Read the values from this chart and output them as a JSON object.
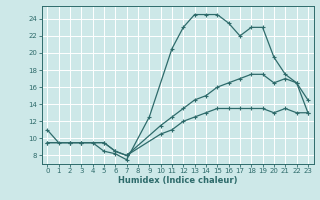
{
  "xlabel": "Humidex (Indice chaleur)",
  "background_color": "#cde8e8",
  "grid_color": "#ffffff",
  "line_color": "#2e6b6b",
  "xlim": [
    -0.5,
    23.5
  ],
  "ylim": [
    7.0,
    25.5
  ],
  "xticks": [
    0,
    1,
    2,
    3,
    4,
    5,
    6,
    7,
    8,
    9,
    10,
    11,
    12,
    13,
    14,
    15,
    16,
    17,
    18,
    19,
    20,
    21,
    22,
    23
  ],
  "yticks": [
    8,
    10,
    12,
    14,
    16,
    18,
    20,
    22,
    24
  ],
  "curve1_x": [
    0,
    1,
    2,
    3,
    4,
    5,
    6,
    7,
    9,
    11,
    12,
    13,
    14,
    15,
    16,
    17,
    18,
    19,
    20,
    21,
    22,
    23
  ],
  "curve1_y": [
    11,
    9.5,
    9.5,
    9.5,
    9.5,
    8.5,
    8.2,
    7.5,
    12.5,
    20.5,
    23.0,
    24.5,
    24.5,
    24.5,
    23.5,
    22.0,
    23.0,
    23.0,
    19.5,
    17.5,
    16.5,
    13.0
  ],
  "curve2_x": [
    0,
    2,
    3,
    5,
    6,
    7,
    10,
    11,
    12,
    13,
    14,
    15,
    16,
    17,
    18,
    19,
    20,
    21,
    22,
    23
  ],
  "curve2_y": [
    9.5,
    9.5,
    9.5,
    9.5,
    8.5,
    8.0,
    11.5,
    12.5,
    13.5,
    14.5,
    15.0,
    16.0,
    16.5,
    17.0,
    17.5,
    17.5,
    16.5,
    17.0,
    16.5,
    14.5
  ],
  "curve3_x": [
    0,
    2,
    3,
    5,
    6,
    7,
    10,
    11,
    12,
    13,
    14,
    15,
    16,
    17,
    18,
    19,
    20,
    21,
    22,
    23
  ],
  "curve3_y": [
    9.5,
    9.5,
    9.5,
    9.5,
    8.5,
    8.0,
    10.5,
    11.0,
    12.0,
    12.5,
    13.0,
    13.5,
    13.5,
    13.5,
    13.5,
    13.5,
    13.0,
    13.5,
    13.0,
    13.0
  ]
}
